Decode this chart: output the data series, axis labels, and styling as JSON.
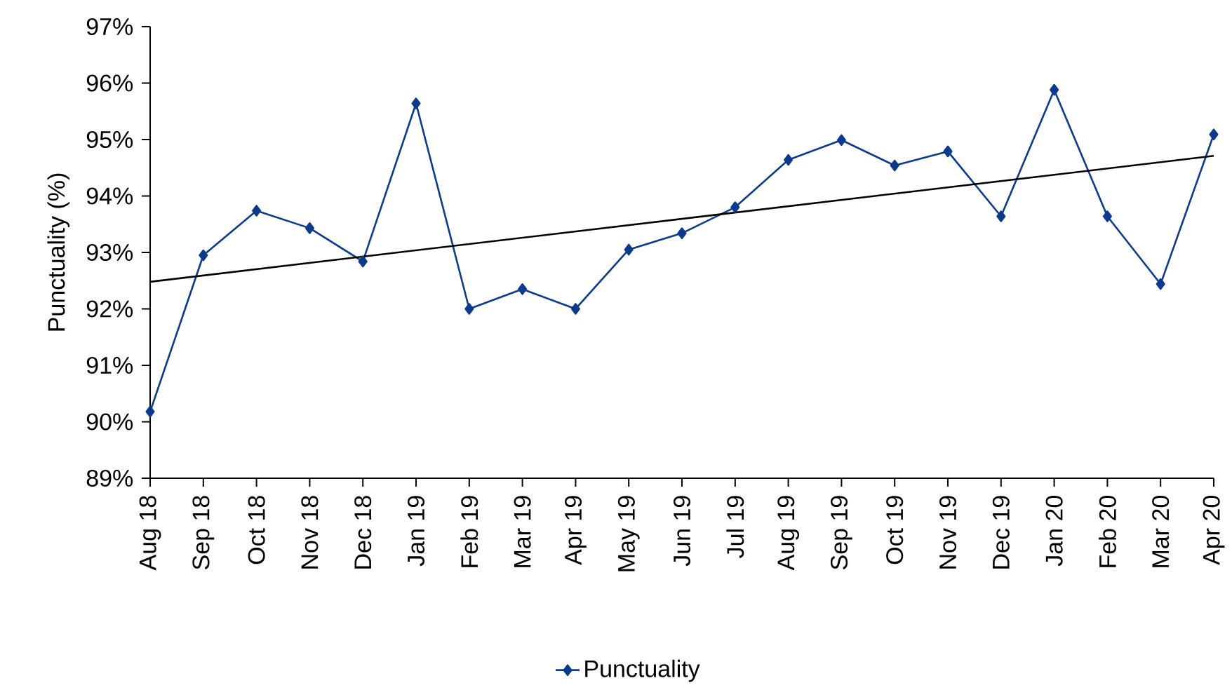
{
  "chart_data": {
    "type": "line",
    "ylabel": "Punctuality (%)",
    "categories": [
      "Aug 18",
      "Sep 18",
      "Oct 18",
      "Nov 18",
      "Dec 18",
      "Jan 19",
      "Feb 19",
      "Mar 19",
      "Apr 19",
      "May 19",
      "Jun 19",
      "Jul 19",
      "Aug 19",
      "Sep 19",
      "Oct 19",
      "Nov 19",
      "Dec 19",
      "Jan 20",
      "Feb 20",
      "Mar 20",
      "Apr 20"
    ],
    "series": [
      {
        "name": "Punctuality",
        "color": "#0b3a8f",
        "marker": "diamond",
        "values": [
          90.18,
          92.95,
          93.74,
          93.43,
          92.84,
          95.64,
          92.0,
          92.35,
          92.0,
          93.05,
          93.34,
          93.8,
          94.64,
          94.99,
          94.54,
          94.79,
          93.64,
          95.88,
          93.64,
          92.44,
          95.09
        ]
      },
      {
        "type": "line",
        "color": "#000000",
        "marker": "none",
        "values": [
          92.48,
          null,
          null,
          null,
          null,
          null,
          null,
          null,
          null,
          null,
          null,
          null,
          null,
          null,
          null,
          null,
          null,
          null,
          null,
          null,
          94.71
        ]
      }
    ],
    "ylim": [
      89,
      97
    ],
    "yticks": [
      {
        "value": 89,
        "label": "89%"
      },
      {
        "value": 90,
        "label": "90%"
      },
      {
        "value": 91,
        "label": "91%"
      },
      {
        "value": 92,
        "label": "92%"
      },
      {
        "value": 93,
        "label": "93%"
      },
      {
        "value": 94,
        "label": "94%"
      },
      {
        "value": 95,
        "label": "95%"
      },
      {
        "value": 96,
        "label": "96%"
      },
      {
        "value": 97,
        "label": "97%"
      }
    ],
    "grid": false,
    "legend": "bottom",
    "line_style": "solid"
  }
}
